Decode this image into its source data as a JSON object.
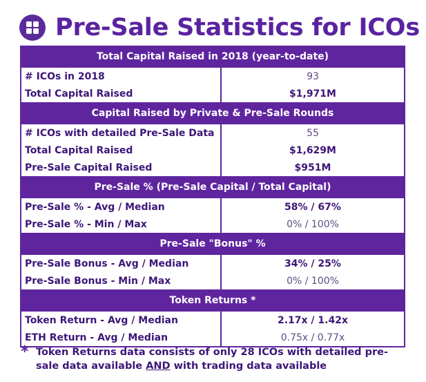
{
  "title": "Pre-Sale Statistics for ICOs",
  "logo_icon": "grid-icon",
  "colors": {
    "accent": "#5f259f",
    "text": "#3d1678"
  },
  "sections": [
    {
      "header": "Total Capital Raised in 2018 (year-to-date)",
      "rows": [
        {
          "label": "# ICOs in 2018",
          "value": "93"
        },
        {
          "label": "Total Capital Raised",
          "value": "$1,971M"
        }
      ]
    },
    {
      "header": "Capital Raised by Private & Pre-Sale Rounds",
      "rows": [
        {
          "label": "# ICOs with detailed Pre-Sale Data",
          "value": "55"
        },
        {
          "label": "Total Capital Raised",
          "value": "$1,629M"
        },
        {
          "label": "Pre-Sale Capital Raised",
          "value": "$951M"
        }
      ]
    },
    {
      "header": "Pre-Sale % (Pre-Sale Capital / Total Capital)",
      "rows": [
        {
          "label": "Pre-Sale % - Avg / Median",
          "value": "58% / 67%"
        },
        {
          "label": "Pre-Sale % - Min / Max",
          "value": "0% / 100%"
        }
      ]
    },
    {
      "header": "Pre-Sale \"Bonus\" %",
      "rows": [
        {
          "label": "Pre-Sale Bonus - Avg / Median",
          "value": "34% / 25%"
        },
        {
          "label": "Pre-Sale Bonus - Min / Max",
          "value": "0% / 100%"
        }
      ]
    },
    {
      "header": "Token Returns *",
      "rows": [
        {
          "label": "Token Return - Avg / Median",
          "value": "2.17x / 1.42x"
        },
        {
          "label": "ETH Return - Avg / Median",
          "value": "0.75x / 0.77x"
        }
      ]
    }
  ],
  "footnote": {
    "marker": "*",
    "text_before": "Token Returns data consists of only 28 ICOs with detailed pre-sale data available ",
    "emphasis": "AND",
    "text_after": " with trading data available"
  }
}
